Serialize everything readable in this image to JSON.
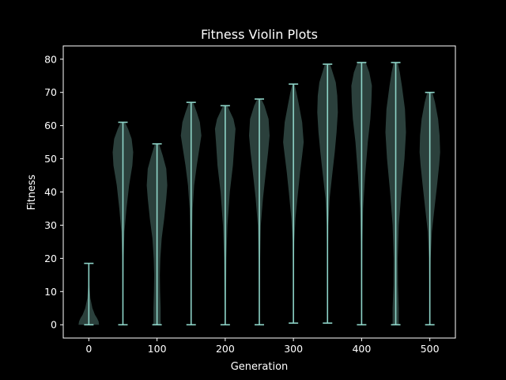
{
  "chart_data": {
    "type": "violin",
    "title": "Fitness Violin Plots",
    "xlabel": "Generation",
    "ylabel": "Fitness",
    "xlim": [
      -37.5,
      537.5
    ],
    "ylim": [
      -4,
      84
    ],
    "xticks": [
      0,
      100,
      200,
      300,
      400,
      500
    ],
    "yticks": [
      0,
      10,
      20,
      30,
      40,
      50,
      60,
      70,
      80
    ],
    "grid": false,
    "colors": {
      "background": "#000000",
      "body": "#8dd3c7",
      "line": "#8dd3c7",
      "text": "#ffffff"
    },
    "series": [
      {
        "x": 0,
        "min": 0,
        "max": 18.5,
        "shape": [
          [
            0,
            1.0
          ],
          [
            1,
            0.95
          ],
          [
            2,
            0.8
          ],
          [
            3,
            0.6
          ],
          [
            5,
            0.35
          ],
          [
            8,
            0.15
          ],
          [
            12,
            0.05
          ],
          [
            18.5,
            0.01
          ]
        ]
      },
      {
        "x": 50,
        "min": 0,
        "max": 61,
        "shape": [
          [
            0,
            0.02
          ],
          [
            10,
            0.04
          ],
          [
            20,
            0.07
          ],
          [
            28,
            0.15
          ],
          [
            35,
            0.35
          ],
          [
            42,
            0.6
          ],
          [
            48,
            0.92
          ],
          [
            52,
            1.0
          ],
          [
            56,
            0.85
          ],
          [
            59,
            0.5
          ],
          [
            61,
            0.2
          ]
        ]
      },
      {
        "x": 100,
        "min": 0,
        "max": 54.5,
        "shape": [
          [
            0,
            0.35
          ],
          [
            5,
            0.35
          ],
          [
            10,
            0.3
          ],
          [
            15,
            0.28
          ],
          [
            20,
            0.32
          ],
          [
            26,
            0.45
          ],
          [
            32,
            0.7
          ],
          [
            38,
            0.9
          ],
          [
            42,
            1.0
          ],
          [
            47,
            0.9
          ],
          [
            51,
            0.55
          ],
          [
            54.5,
            0.2
          ]
        ]
      },
      {
        "x": 150,
        "min": 0,
        "max": 67,
        "shape": [
          [
            0,
            0.02
          ],
          [
            15,
            0.04
          ],
          [
            25,
            0.08
          ],
          [
            35,
            0.15
          ],
          [
            42,
            0.3
          ],
          [
            48,
            0.55
          ],
          [
            53,
            0.8
          ],
          [
            57,
            1.0
          ],
          [
            61,
            0.85
          ],
          [
            64,
            0.55
          ],
          [
            67,
            0.2
          ]
        ]
      },
      {
        "x": 200,
        "min": 0,
        "max": 66,
        "shape": [
          [
            0,
            0.05
          ],
          [
            10,
            0.08
          ],
          [
            20,
            0.12
          ],
          [
            30,
            0.22
          ],
          [
            40,
            0.45
          ],
          [
            48,
            0.75
          ],
          [
            55,
            0.9
          ],
          [
            59,
            1.0
          ],
          [
            62,
            0.8
          ],
          [
            64,
            0.5
          ],
          [
            66,
            0.2
          ]
        ]
      },
      {
        "x": 250,
        "min": 0,
        "max": 68,
        "shape": [
          [
            0,
            0.02
          ],
          [
            10,
            0.04
          ],
          [
            20,
            0.08
          ],
          [
            30,
            0.15
          ],
          [
            38,
            0.35
          ],
          [
            45,
            0.6
          ],
          [
            52,
            0.85
          ],
          [
            57,
            1.0
          ],
          [
            62,
            0.9
          ],
          [
            66,
            0.5
          ],
          [
            68,
            0.2
          ]
        ]
      },
      {
        "x": 300,
        "min": 0.5,
        "max": 72.5,
        "shape": [
          [
            0.5,
            0.02
          ],
          [
            15,
            0.04
          ],
          [
            25,
            0.08
          ],
          [
            32,
            0.2
          ],
          [
            40,
            0.45
          ],
          [
            46,
            0.65
          ],
          [
            51,
            0.85
          ],
          [
            55,
            1.0
          ],
          [
            61,
            0.85
          ],
          [
            66,
            0.55
          ],
          [
            70,
            0.3
          ],
          [
            72.5,
            0.1
          ]
        ]
      },
      {
        "x": 350,
        "min": 0.5,
        "max": 78.5,
        "shape": [
          [
            0.5,
            0.02
          ],
          [
            20,
            0.04
          ],
          [
            30,
            0.08
          ],
          [
            38,
            0.2
          ],
          [
            45,
            0.45
          ],
          [
            52,
            0.7
          ],
          [
            58,
            0.88
          ],
          [
            64,
            1.0
          ],
          [
            69,
            0.95
          ],
          [
            73,
            0.8
          ],
          [
            76,
            0.5
          ],
          [
            78.5,
            0.25
          ]
        ]
      },
      {
        "x": 400,
        "min": 0,
        "max": 79,
        "shape": [
          [
            0,
            0.03
          ],
          [
            15,
            0.05
          ],
          [
            25,
            0.08
          ],
          [
            35,
            0.15
          ],
          [
            45,
            0.35
          ],
          [
            55,
            0.6
          ],
          [
            62,
            0.85
          ],
          [
            67,
            0.95
          ],
          [
            72,
            1.0
          ],
          [
            76,
            0.75
          ],
          [
            79,
            0.4
          ]
        ]
      },
      {
        "x": 450,
        "min": 0,
        "max": 79,
        "shape": [
          [
            0,
            0.3
          ],
          [
            5,
            0.3
          ],
          [
            12,
            0.22
          ],
          [
            20,
            0.2
          ],
          [
            30,
            0.3
          ],
          [
            40,
            0.55
          ],
          [
            50,
            0.85
          ],
          [
            58,
            1.0
          ],
          [
            65,
            0.9
          ],
          [
            72,
            0.6
          ],
          [
            76,
            0.4
          ],
          [
            79,
            0.2
          ]
        ]
      },
      {
        "x": 500,
        "min": 0,
        "max": 70,
        "shape": [
          [
            0,
            0.02
          ],
          [
            10,
            0.04
          ],
          [
            20,
            0.08
          ],
          [
            28,
            0.2
          ],
          [
            35,
            0.45
          ],
          [
            42,
            0.7
          ],
          [
            48,
            0.9
          ],
          [
            52,
            1.0
          ],
          [
            57,
            0.95
          ],
          [
            62,
            0.8
          ],
          [
            67,
            0.5
          ],
          [
            70,
            0.25
          ]
        ]
      }
    ]
  }
}
